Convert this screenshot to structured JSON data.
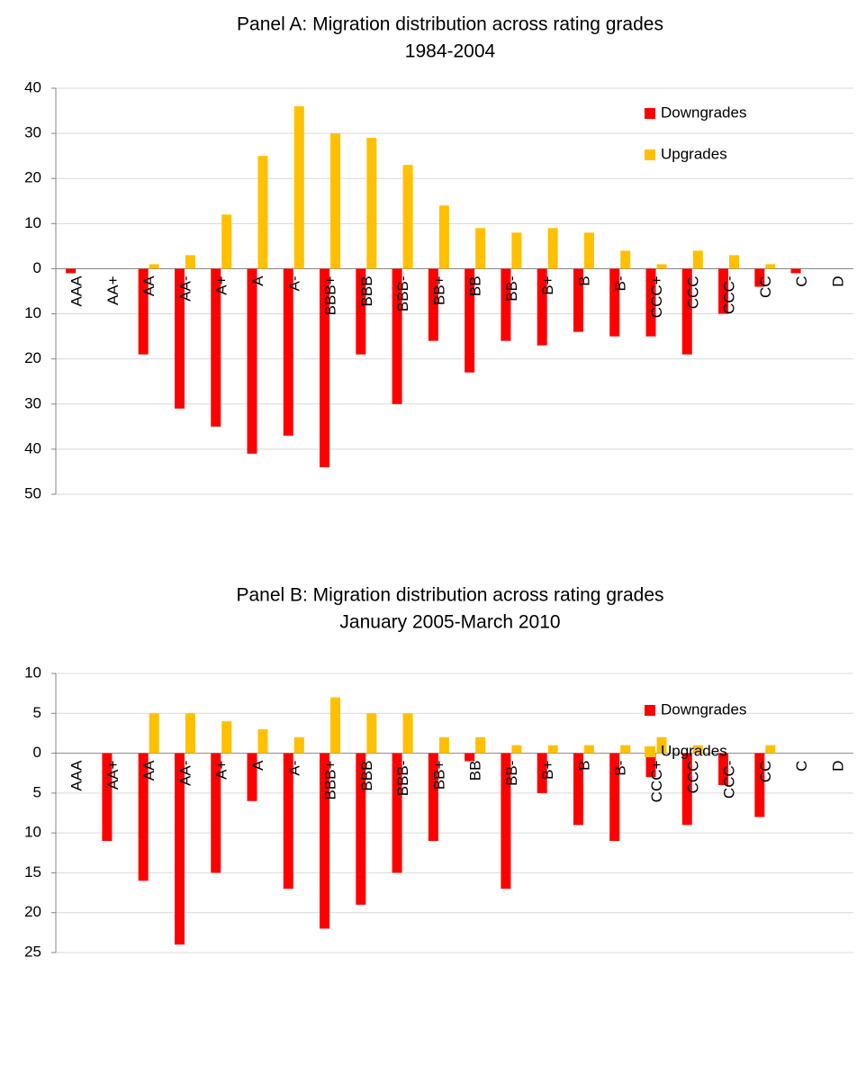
{
  "chart_data": [
    {
      "type": "bar",
      "title": "Panel A: Migration distribution across rating grades",
      "subtitle": "1984-2004",
      "categories": [
        "AAA",
        "AA+",
        "AA",
        "AA-",
        "A+",
        "A",
        "A-",
        "BBB+",
        "BBB",
        "BBB-",
        "BB+",
        "BB",
        "BB-",
        "B+",
        "B",
        "B-",
        "CCC+",
        "CCC",
        "CCC-",
        "CC",
        "C",
        "D"
      ],
      "series": [
        {
          "name": "Downgrades",
          "color": "#ff0000",
          "values": [
            -1,
            0,
            -19,
            -31,
            -35,
            -41,
            -37,
            -44,
            -19,
            -30,
            -16,
            -23,
            -16,
            -17,
            -14,
            -15,
            -15,
            -19,
            -10,
            -4,
            -1,
            0
          ]
        },
        {
          "name": "Upgrades",
          "color": "#ffc000",
          "values": [
            0,
            0,
            1,
            3,
            12,
            25,
            36,
            30,
            29,
            23,
            14,
            9,
            8,
            9,
            8,
            4,
            1,
            4,
            3,
            1,
            0,
            0
          ]
        }
      ],
      "ylim": [
        -50,
        40
      ],
      "yticks": [
        40,
        30,
        20,
        10,
        0,
        {
          "value": -10,
          "label": "10"
        },
        {
          "value": -20,
          "label": "20"
        },
        {
          "value": -30,
          "label": "30"
        },
        {
          "value": -40,
          "label": "40"
        },
        {
          "value": -50,
          "label": "50"
        }
      ],
      "grid": true,
      "legend": "upper right"
    },
    {
      "type": "bar",
      "title": "Panel B: Migration distribution across rating grades",
      "subtitle": "January 2005-March 2010",
      "categories": [
        "AAA",
        "AA+",
        "AA",
        "AA-",
        "A+",
        "A",
        "A-",
        "BBB+",
        "BBB",
        "BBB-",
        "BB+",
        "BB",
        "BB-",
        "B+",
        "B",
        "B-",
        "CCC+",
        "CCC",
        "CCC-",
        "CC",
        "C",
        "D"
      ],
      "series": [
        {
          "name": "Downgrades",
          "color": "#ff0000",
          "values": [
            0,
            -11,
            -16,
            -24,
            -15,
            -6,
            -17,
            -22,
            -19,
            -15,
            -11,
            -1,
            -17,
            -5,
            -9,
            -11,
            -3,
            -9,
            -4,
            -8,
            0,
            0
          ]
        },
        {
          "name": "Upgrades",
          "color": "#ffc000",
          "values": [
            0,
            0,
            5,
            5,
            4,
            3,
            2,
            7,
            5,
            5,
            2,
            2,
            1,
            1,
            1,
            1,
            2,
            1,
            0,
            1,
            0,
            0
          ]
        }
      ],
      "ylim": [
        -25,
        10
      ],
      "yticks": [
        10,
        5,
        0,
        {
          "value": -5,
          "label": "5"
        },
        {
          "value": -10,
          "label": "10"
        },
        {
          "value": -15,
          "label": "15"
        },
        {
          "value": -20,
          "label": "20"
        },
        {
          "value": -25,
          "label": "25"
        }
      ],
      "grid": true,
      "legend": "center right"
    }
  ]
}
